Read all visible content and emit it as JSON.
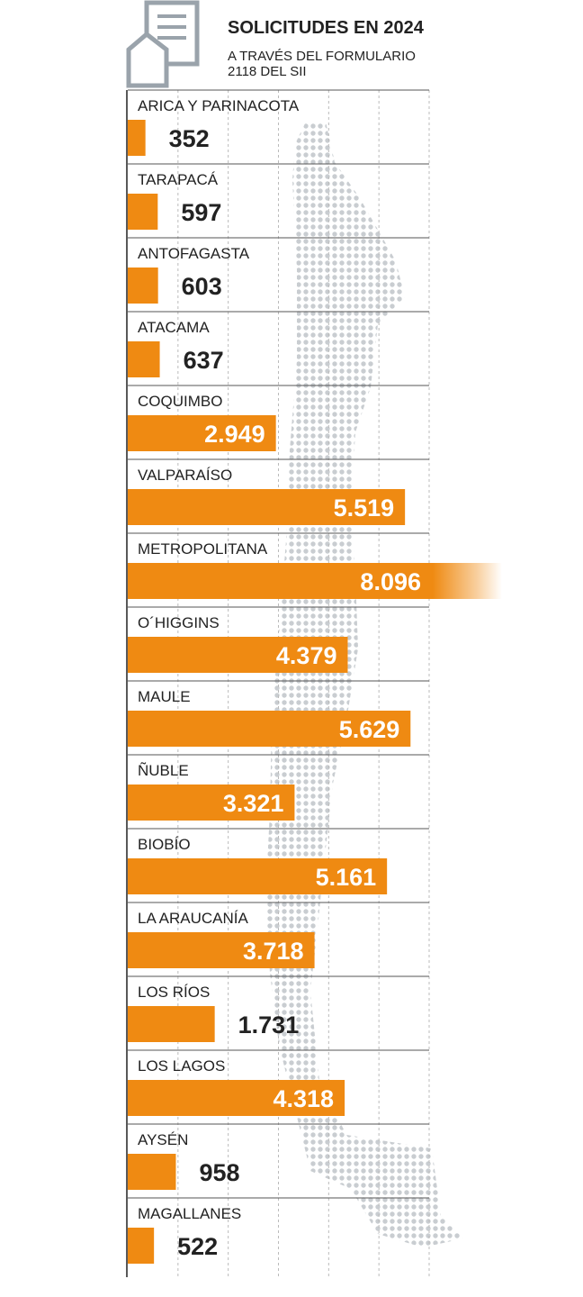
{
  "chart_data": {
    "type": "bar",
    "orientation": "horizontal",
    "title": "SOLICITUDES EN 2024",
    "subtitle": "A TRAVÉS DEL FORMULARIO 2118 DEL SII",
    "categories": [
      "ARICA Y PARINACOTA",
      "TARAPACÁ",
      "ANTOFAGASTA",
      "ATACAMA",
      "COQUIMBO",
      "VALPARAÍSO",
      "METROPOLITANA",
      "O´HIGGINS",
      "MAULE",
      "ÑUBLE",
      "BIOBÍO",
      "LA ARAUCANÍA",
      "LOS RÍOS",
      "LOS LAGOS",
      "AYSÉN",
      "MAGALLANES"
    ],
    "values": [
      352,
      597,
      603,
      637,
      2949,
      5519,
      8096,
      4379,
      5629,
      3321,
      5161,
      3718,
      1731,
      4318,
      958,
      522
    ],
    "value_labels": [
      "352",
      "597",
      "603",
      "637",
      "2.949",
      "5.519",
      "8.096",
      "4.379",
      "5.629",
      "3.321",
      "5.161",
      "3.718",
      "1.731",
      "4.318",
      "958",
      "522"
    ],
    "color": "#ef8a12",
    "xlim": [
      0,
      6000
    ]
  }
}
